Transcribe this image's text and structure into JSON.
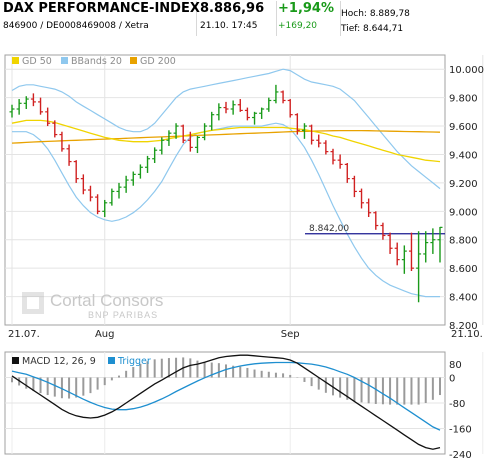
{
  "header": {
    "index_name": "DAX PERFORMANCE-INDEX",
    "identifiers": "846900 / DE0008469008 / Xetra",
    "price": "8.886,96",
    "datetime": "21.10. 17:45",
    "change_pct": "+1,94%",
    "change_abs": "+169,20",
    "high": "Hoch: 8.889,78",
    "low": "Tief: 8.644,71"
  },
  "watermark": {
    "brand": "Cortal Consors",
    "sub": "BNP PARIBAS"
  },
  "colors": {
    "gd50": "#f0d400",
    "bbands": "#8fc8ee",
    "gd200": "#e8a200",
    "candle_up": "#1a9a1a",
    "candle_down": "#d02020",
    "macd": "#111111",
    "trigger": "#1e8fd0",
    "reference_line": "#1a1a90"
  },
  "chart_data": [
    {
      "type": "candlestick",
      "legend": [
        "GD 50",
        "BBands 20",
        "GD 200"
      ],
      "ylim": [
        8200,
        10100
      ],
      "yticks": [
        "10.000",
        "9.800",
        "9.600",
        "9.400",
        "9.200",
        "9.000",
        "8.800",
        "8.600",
        "8.400",
        "8.200"
      ],
      "ytick_values": [
        10000,
        9800,
        9600,
        9400,
        9200,
        9000,
        8800,
        8600,
        8400,
        8200
      ],
      "xticks": [
        "21.07.",
        "Aug",
        "Sep",
        "21.10."
      ],
      "xtick_positions": [
        0,
        13,
        39,
        66
      ],
      "reference_label": "8.842,00",
      "reference_value": 8842,
      "ohlc": [
        [
          9700,
          9750,
          9660,
          9720
        ],
        [
          9720,
          9790,
          9680,
          9760
        ],
        [
          9760,
          9810,
          9720,
          9790
        ],
        [
          9790,
          9830,
          9740,
          9770
        ],
        [
          9770,
          9800,
          9680,
          9700
        ],
        [
          9700,
          9730,
          9600,
          9620
        ],
        [
          9620,
          9640,
          9520,
          9540
        ],
        [
          9540,
          9560,
          9420,
          9440
        ],
        [
          9440,
          9470,
          9320,
          9350
        ],
        [
          9350,
          9360,
          9200,
          9230
        ],
        [
          9230,
          9260,
          9120,
          9150
        ],
        [
          9150,
          9180,
          9070,
          9100
        ],
        [
          9100,
          9120,
          8980,
          9000
        ],
        [
          9000,
          9080,
          8960,
          9060
        ],
        [
          9060,
          9160,
          9040,
          9140
        ],
        [
          9140,
          9200,
          9090,
          9170
        ],
        [
          9170,
          9250,
          9130,
          9220
        ],
        [
          9220,
          9280,
          9180,
          9260
        ],
        [
          9260,
          9330,
          9230,
          9310
        ],
        [
          9310,
          9390,
          9270,
          9370
        ],
        [
          9370,
          9450,
          9340,
          9430
        ],
        [
          9430,
          9520,
          9400,
          9500
        ],
        [
          9500,
          9570,
          9460,
          9550
        ],
        [
          9550,
          9620,
          9510,
          9600
        ],
        [
          9600,
          9610,
          9480,
          9500
        ],
        [
          9500,
          9560,
          9420,
          9450
        ],
        [
          9450,
          9530,
          9410,
          9520
        ],
        [
          9520,
          9620,
          9500,
          9600
        ],
        [
          9600,
          9700,
          9570,
          9680
        ],
        [
          9680,
          9760,
          9640,
          9730
        ],
        [
          9730,
          9770,
          9690,
          9720
        ],
        [
          9720,
          9780,
          9680,
          9750
        ],
        [
          9750,
          9790,
          9700,
          9710
        ],
        [
          9710,
          9730,
          9640,
          9660
        ],
        [
          9660,
          9700,
          9610,
          9690
        ],
        [
          9690,
          9730,
          9650,
          9720
        ],
        [
          9720,
          9800,
          9700,
          9780
        ],
        [
          9780,
          9890,
          9760,
          9840
        ],
        [
          9840,
          9850,
          9760,
          9780
        ],
        [
          9780,
          9790,
          9660,
          9680
        ],
        [
          9680,
          9690,
          9540,
          9570
        ],
        [
          9570,
          9620,
          9510,
          9600
        ],
        [
          9600,
          9610,
          9470,
          9500
        ],
        [
          9500,
          9540,
          9450,
          9480
        ],
        [
          9480,
          9500,
          9400,
          9420
        ],
        [
          9420,
          9440,
          9330,
          9360
        ],
        [
          9360,
          9400,
          9300,
          9330
        ],
        [
          9330,
          9340,
          9200,
          9230
        ],
        [
          9230,
          9250,
          9100,
          9140
        ],
        [
          9140,
          9160,
          9020,
          9060
        ],
        [
          9060,
          9090,
          8960,
          8990
        ],
        [
          8990,
          9000,
          8870,
          8900
        ],
        [
          8900,
          8920,
          8800,
          8830
        ],
        [
          8830,
          8850,
          8700,
          8740
        ],
        [
          8740,
          8780,
          8620,
          8660
        ],
        [
          8660,
          8760,
          8560,
          8720
        ],
        [
          8720,
          8850,
          8580,
          8600
        ],
        [
          8600,
          8860,
          8360,
          8700
        ],
        [
          8700,
          8860,
          8640,
          8780
        ],
        [
          8780,
          8880,
          8700,
          8800
        ],
        [
          8800,
          8890,
          8640,
          8887
        ]
      ],
      "gd50": [
        9620,
        9630,
        9640,
        9640,
        9640,
        9635,
        9625,
        9610,
        9595,
        9580,
        9565,
        9550,
        9535,
        9520,
        9510,
        9500,
        9495,
        9490,
        9490,
        9490,
        9495,
        9500,
        9510,
        9520,
        9530,
        9540,
        9550,
        9560,
        9570,
        9575,
        9580,
        9585,
        9590,
        9590,
        9590,
        9590,
        9590,
        9590,
        9590,
        9585,
        9580,
        9575,
        9565,
        9555,
        9545,
        9530,
        9520,
        9505,
        9490,
        9475,
        9460,
        9445,
        9430,
        9415,
        9400,
        9390,
        9380,
        9370,
        9360,
        9355,
        9350
      ],
      "gd200": [
        9480,
        9482,
        9485,
        9488,
        9490,
        9492,
        9494,
        9496,
        9498,
        9500,
        9502,
        9504,
        9506,
        9508,
        9510,
        9512,
        9514,
        9516,
        9518,
        9520,
        9522,
        9524,
        9526,
        9528,
        9530,
        9532,
        9534,
        9536,
        9538,
        9540,
        9542,
        9544,
        9546,
        9548,
        9550,
        9552,
        9554,
        9556,
        9558,
        9560,
        9562,
        9563,
        9564,
        9565,
        9566,
        9567,
        9568,
        9568,
        9568,
        9568,
        9567,
        9566,
        9565,
        9564,
        9563,
        9562,
        9561,
        9560,
        9559,
        9558,
        9557
      ],
      "bb_upper": [
        9850,
        9880,
        9890,
        9890,
        9880,
        9870,
        9860,
        9840,
        9810,
        9770,
        9740,
        9710,
        9680,
        9650,
        9620,
        9590,
        9570,
        9560,
        9560,
        9580,
        9620,
        9680,
        9740,
        9800,
        9840,
        9860,
        9870,
        9880,
        9890,
        9900,
        9910,
        9920,
        9930,
        9940,
        9950,
        9960,
        9970,
        9985,
        10000,
        9990,
        9960,
        9930,
        9910,
        9900,
        9890,
        9880,
        9860,
        9820,
        9780,
        9720,
        9660,
        9600,
        9540,
        9480,
        9420,
        9370,
        9320,
        9280,
        9240,
        9200,
        9160
      ],
      "bb_lower": [
        9560,
        9560,
        9560,
        9540,
        9500,
        9440,
        9360,
        9270,
        9180,
        9100,
        9040,
        8990,
        8960,
        8940,
        8930,
        8940,
        8960,
        8990,
        9030,
        9080,
        9140,
        9210,
        9300,
        9390,
        9470,
        9520,
        9550,
        9560,
        9570,
        9580,
        9590,
        9600,
        9600,
        9600,
        9600,
        9600,
        9610,
        9620,
        9610,
        9580,
        9520,
        9450,
        9360,
        9260,
        9150,
        9040,
        8940,
        8840,
        8750,
        8670,
        8600,
        8550,
        8510,
        8480,
        8460,
        8440,
        8420,
        8410,
        8400,
        8400,
        8400
      ]
    },
    {
      "type": "line",
      "legend": [
        "MACD 12, 26, 9",
        "Trigger"
      ],
      "ylim": [
        -240,
        80
      ],
      "yticks": [
        "80",
        "0",
        "-80",
        "-160",
        "-240"
      ],
      "ytick_values": [
        80,
        0,
        -80,
        -160,
        -240
      ],
      "series": [
        {
          "name": "MACD 12, 26, 9",
          "values": [
            5,
            -10,
            -25,
            -40,
            -55,
            -70,
            -85,
            -100,
            -112,
            -120,
            -125,
            -127,
            -125,
            -118,
            -108,
            -95,
            -80,
            -65,
            -50,
            -35,
            -20,
            -8,
            5,
            18,
            30,
            38,
            42,
            48,
            55,
            62,
            66,
            68,
            70,
            70,
            68,
            66,
            64,
            62,
            60,
            55,
            45,
            30,
            15,
            0,
            -15,
            -30,
            -45,
            -60,
            -75,
            -90,
            -105,
            -120,
            -135,
            -150,
            -165,
            -180,
            -195,
            -210,
            -220,
            -225,
            -220
          ]
        },
        {
          "name": "Trigger",
          "values": [
            20,
            15,
            10,
            2,
            -6,
            -15,
            -25,
            -35,
            -46,
            -57,
            -68,
            -78,
            -87,
            -94,
            -99,
            -101,
            -101,
            -98,
            -93,
            -86,
            -77,
            -67,
            -56,
            -44,
            -33,
            -22,
            -11,
            -1,
            8,
            17,
            25,
            31,
            36,
            40,
            43,
            45,
            46,
            47,
            47,
            47,
            46,
            44,
            42,
            38,
            33,
            26,
            18,
            10,
            0,
            -12,
            -24,
            -37,
            -51,
            -65,
            -80,
            -95,
            -110,
            -125,
            -140,
            -155,
            -165
          ]
        }
      ],
      "histogram": [
        -15,
        -25,
        -35,
        -42,
        -49,
        -55,
        -60,
        -65,
        -66,
        -63,
        -57,
        -49,
        -38,
        -24,
        -9,
        6,
        21,
        33,
        43,
        51,
        57,
        59,
        61,
        62,
        63,
        60,
        53,
        49,
        47,
        45,
        41,
        37,
        34,
        30,
        25,
        21,
        18,
        15,
        13,
        8,
        -1,
        -14,
        -27,
        -38,
        -48,
        -56,
        -63,
        -70,
        -75,
        -78,
        -81,
        -83,
        -84,
        -85,
        -85,
        -85,
        -85,
        -85,
        -80,
        -70,
        -55
      ]
    }
  ]
}
